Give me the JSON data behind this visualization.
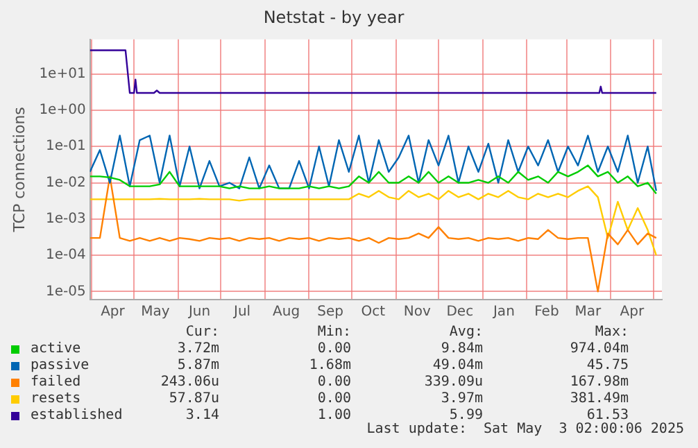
{
  "chart_data": {
    "type": "line",
    "title": "Netstat - by year",
    "ylabel": "TCP connections",
    "log": true,
    "grid": true,
    "legend": "bottom",
    "marker": "none",
    "line_style": "solid",
    "ylim": [
      6e-06,
      90
    ],
    "yticks": [
      {
        "value": 10,
        "label": "1e+01"
      },
      {
        "value": 1,
        "label": "1e+00"
      },
      {
        "value": 0.1,
        "label": "1e-01"
      },
      {
        "value": 0.01,
        "label": "1e-02"
      },
      {
        "value": 0.001,
        "label": "1e-03"
      },
      {
        "value": 0.0001,
        "label": "1e-04"
      },
      {
        "value": 1e-05,
        "label": "1e-05"
      }
    ],
    "xlim": [
      "2024-03-31",
      "2025-05-07"
    ],
    "xticks": [
      {
        "value": "2024-04-01",
        "label": null
      },
      {
        "value": "2024-04-16",
        "label": "Apr"
      },
      {
        "value": "2024-05-01",
        "label": null
      },
      {
        "value": "2024-05-16",
        "label": "May"
      },
      {
        "value": "2024-06-01",
        "label": null
      },
      {
        "value": "2024-06-16",
        "label": "Jun"
      },
      {
        "value": "2024-07-01",
        "label": null
      },
      {
        "value": "2024-07-16",
        "label": "Jul"
      },
      {
        "value": "2024-08-01",
        "label": null
      },
      {
        "value": "2024-08-16",
        "label": "Aug"
      },
      {
        "value": "2024-09-01",
        "label": null
      },
      {
        "value": "2024-09-16",
        "label": "Sep"
      },
      {
        "value": "2024-10-01",
        "label": null
      },
      {
        "value": "2024-10-16",
        "label": "Oct"
      },
      {
        "value": "2024-11-01",
        "label": null
      },
      {
        "value": "2024-11-16",
        "label": "Nov"
      },
      {
        "value": "2024-12-01",
        "label": null
      },
      {
        "value": "2024-12-16",
        "label": "Dec"
      },
      {
        "value": "2025-01-01",
        "label": null
      },
      {
        "value": "2025-01-16",
        "label": "Jan"
      },
      {
        "value": "2025-02-01",
        "label": null
      },
      {
        "value": "2025-02-15",
        "label": "Feb"
      },
      {
        "value": "2025-03-01",
        "label": null
      },
      {
        "value": "2025-03-16",
        "label": "Mar"
      },
      {
        "value": "2025-04-01",
        "label": null
      },
      {
        "value": "2025-04-16",
        "label": "Apr"
      },
      {
        "value": "2025-05-01",
        "label": null
      }
    ],
    "x": [
      "2024-03-31",
      "2024-04-07",
      "2024-04-14",
      "2024-04-21",
      "2024-04-28",
      "2024-05-05",
      "2024-05-12",
      "2024-05-19",
      "2024-05-26",
      "2024-06-02",
      "2024-06-09",
      "2024-06-16",
      "2024-06-23",
      "2024-06-30",
      "2024-07-07",
      "2024-07-14",
      "2024-07-21",
      "2024-07-28",
      "2024-08-04",
      "2024-08-11",
      "2024-08-18",
      "2024-08-25",
      "2024-09-01",
      "2024-09-08",
      "2024-09-15",
      "2024-09-22",
      "2024-09-29",
      "2024-10-06",
      "2024-10-13",
      "2024-10-20",
      "2024-10-27",
      "2024-11-03",
      "2024-11-10",
      "2024-11-17",
      "2024-11-24",
      "2024-12-01",
      "2024-12-08",
      "2024-12-15",
      "2024-12-22",
      "2024-12-29",
      "2025-01-05",
      "2025-01-12",
      "2025-01-19",
      "2025-01-26",
      "2025-02-02",
      "2025-02-09",
      "2025-02-16",
      "2025-02-23",
      "2025-03-02",
      "2025-03-09",
      "2025-03-16",
      "2025-03-23",
      "2025-03-30",
      "2025-04-06",
      "2025-04-13",
      "2025-04-20",
      "2025-04-27",
      "2025-05-03"
    ],
    "series": [
      {
        "name": "active",
        "color": "#00cc00",
        "values": [
          0.015,
          0.015,
          0.014,
          0.012,
          0.008,
          0.008,
          0.008,
          0.009,
          0.02,
          0.008,
          0.008,
          0.008,
          0.008,
          0.008,
          0.007,
          0.008,
          0.007,
          0.007,
          0.008,
          0.007,
          0.007,
          0.007,
          0.008,
          0.007,
          0.008,
          0.007,
          0.008,
          0.015,
          0.01,
          0.02,
          0.01,
          0.01,
          0.015,
          0.01,
          0.02,
          0.01,
          0.015,
          0.01,
          0.01,
          0.012,
          0.01,
          0.015,
          0.01,
          0.02,
          0.012,
          0.015,
          0.01,
          0.02,
          0.015,
          0.02,
          0.03,
          0.015,
          0.02,
          0.01,
          0.015,
          0.008,
          0.01,
          0.005
        ]
      },
      {
        "name": "passive",
        "color": "#0066b3",
        "values": [
          0.02,
          0.08,
          0.01,
          0.2,
          0.008,
          0.15,
          0.2,
          0.01,
          0.2,
          0.008,
          0.1,
          0.007,
          0.04,
          0.008,
          0.01,
          0.007,
          0.05,
          0.007,
          0.03,
          0.007,
          0.007,
          0.04,
          0.007,
          0.1,
          0.008,
          0.15,
          0.02,
          0.2,
          0.01,
          0.15,
          0.02,
          0.05,
          0.2,
          0.01,
          0.15,
          0.03,
          0.2,
          0.01,
          0.1,
          0.02,
          0.12,
          0.01,
          0.15,
          0.02,
          0.1,
          0.03,
          0.15,
          0.02,
          0.1,
          0.03,
          0.2,
          0.02,
          0.1,
          0.02,
          0.2,
          0.01,
          0.1,
          0.006
        ]
      },
      {
        "name": "failed",
        "color": "#ff8000",
        "values": [
          0.0003,
          0.0003,
          0.015,
          0.0003,
          0.00025,
          0.0003,
          0.00025,
          0.0003,
          0.00025,
          0.0003,
          0.00028,
          0.00025,
          0.0003,
          0.00028,
          0.0003,
          0.00025,
          0.0003,
          0.00028,
          0.0003,
          0.00025,
          0.0003,
          0.00028,
          0.0003,
          0.00025,
          0.0003,
          0.00028,
          0.0003,
          0.00025,
          0.0003,
          0.00022,
          0.0003,
          0.00028,
          0.0003,
          0.0004,
          0.0003,
          0.0006,
          0.0003,
          0.00028,
          0.0003,
          0.00025,
          0.0003,
          0.00028,
          0.0003,
          0.00025,
          0.0003,
          0.00028,
          0.0005,
          0.0003,
          0.00028,
          0.0003,
          0.0003,
          1e-05,
          0.0004,
          0.0002,
          0.0005,
          0.0002,
          0.0004,
          0.0003
        ]
      },
      {
        "name": "resets",
        "color": "#ffcc00",
        "values": [
          0.0035,
          0.0035,
          0.0035,
          0.0035,
          0.0035,
          0.0035,
          0.0035,
          0.0036,
          0.0035,
          0.0035,
          0.0035,
          0.0036,
          0.0035,
          0.0035,
          0.0035,
          0.0032,
          0.0035,
          0.0035,
          0.0035,
          0.0035,
          0.0035,
          0.0035,
          0.0035,
          0.0035,
          0.0035,
          0.0035,
          0.0035,
          0.005,
          0.004,
          0.006,
          0.004,
          0.0035,
          0.006,
          0.004,
          0.005,
          0.0035,
          0.006,
          0.004,
          0.005,
          0.0035,
          0.005,
          0.004,
          0.006,
          0.004,
          0.0035,
          0.005,
          0.004,
          0.005,
          0.004,
          0.006,
          0.008,
          0.004,
          0.0003,
          0.003,
          0.0005,
          0.002,
          0.0005,
          0.0001
        ]
      },
      {
        "name": "established",
        "color": "#330099",
        "x": [
          "2024-03-31",
          "2024-04-25",
          "2024-04-28",
          "2024-05-01",
          "2024-05-02",
          "2024-05-03",
          "2024-05-15",
          "2024-05-17",
          "2024-05-19",
          "2024-07-01",
          "2025-03-24",
          "2025-03-25",
          "2025-03-26",
          "2025-05-03"
        ],
        "values": [
          45,
          45,
          3,
          3,
          7,
          3,
          3,
          3.5,
          3,
          3,
          3,
          4.5,
          3,
          3
        ]
      }
    ],
    "annotations": [
      "Cur:",
      "Min:",
      "Avg:",
      "Max:",
      "3.72m",
      "0.00",
      "9.84m",
      "974.04m",
      "5.87m",
      "1.68m",
      "49.04m",
      "45.75",
      "243.06u",
      "0.00",
      "339.09u",
      "167.98m",
      "57.87u",
      "0.00",
      "3.97m",
      "381.49m",
      "3.14",
      "1.00",
      "5.99",
      "61.53",
      "Last update:  Sat May  3 02:00:06 2025"
    ]
  }
}
